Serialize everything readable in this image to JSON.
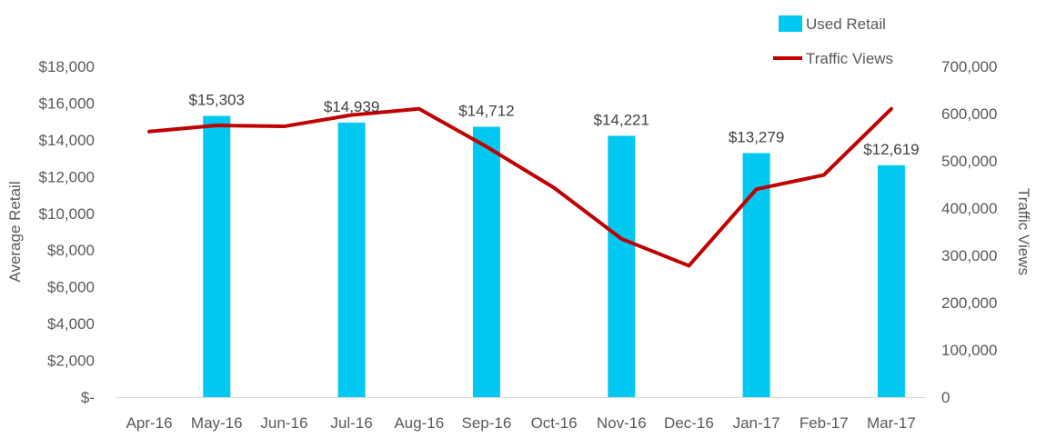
{
  "chart_data": {
    "type": "bar",
    "title": "",
    "categories": [
      "Apr-16",
      "May-16",
      "Jun-16",
      "Jul-16",
      "Aug-16",
      "Sep-16",
      "Oct-16",
      "Nov-16",
      "Dec-16",
      "Jan-17",
      "Feb-17",
      "Mar-17"
    ],
    "ylabel": "Average Retail",
    "y2label": "Traffic Views",
    "ylim": [
      0,
      18000
    ],
    "y2lim": [
      0,
      700000
    ],
    "yticks": [
      "$-",
      "$2,000",
      "$4,000",
      "$6,000",
      "$8,000",
      "$10,000",
      "$12,000",
      "$14,000",
      "$16,000",
      "$18,000"
    ],
    "y2ticks": [
      "0",
      "100,000",
      "200,000",
      "300,000",
      "400,000",
      "500,000",
      "600,000",
      "700,000"
    ],
    "grid": false,
    "legend_position": "top-right",
    "series": [
      {
        "name": "Used Retail",
        "type": "bar",
        "axis": "left",
        "color": "#00C8F0",
        "values": [
          null,
          15303,
          null,
          14939,
          null,
          14712,
          null,
          14221,
          null,
          13279,
          null,
          12619
        ],
        "labels": [
          null,
          "$15,303",
          null,
          "$14,939",
          null,
          "$14,712",
          null,
          "$14,221",
          null,
          "$13,279",
          null,
          "$12,619"
        ]
      },
      {
        "name": "Traffic Views",
        "type": "line",
        "axis": "right",
        "color": "#C00000",
        "values": [
          562000,
          575000,
          573000,
          597000,
          610000,
          530000,
          443000,
          335000,
          278000,
          440000,
          470000,
          610000
        ]
      }
    ]
  }
}
